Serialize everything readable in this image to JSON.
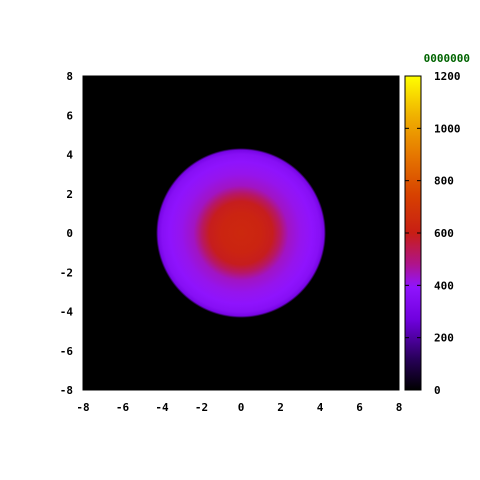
{
  "chart_data": {
    "type": "heatmap",
    "title": "",
    "frame_label": "0000000",
    "frame_label_color": "#006400",
    "xlabel": "",
    "ylabel": "",
    "xlim": [
      -8,
      8
    ],
    "ylim": [
      -8,
      8
    ],
    "x_ticks": [
      "-8",
      "-6",
      "-4",
      "-2",
      "0",
      "2",
      "4",
      "6",
      "8"
    ],
    "y_ticks": [
      "8",
      "6",
      "4",
      "2",
      "0",
      "-2",
      "-4",
      "-6",
      "-8"
    ],
    "colorbar": {
      "range": [
        0,
        1200
      ],
      "ticks": [
        "1200",
        "1000",
        "800",
        "600",
        "400",
        "200",
        "0"
      ],
      "palette": "black-blue-purple-red-orange-yellow"
    },
    "field": {
      "shape": "radial",
      "center": [
        0,
        0
      ],
      "profile": [
        {
          "r": 0.0,
          "value": 640
        },
        {
          "r": 1.0,
          "value": 625
        },
        {
          "r": 1.6,
          "value": 590
        },
        {
          "r": 2.0,
          "value": 520
        },
        {
          "r": 2.4,
          "value": 440
        },
        {
          "r": 3.0,
          "value": 410
        },
        {
          "r": 3.6,
          "value": 390
        },
        {
          "r": 4.0,
          "value": 360
        },
        {
          "r": 4.2,
          "value": 300
        },
        {
          "r": 4.3,
          "value": 0
        },
        {
          "r": 12.0,
          "value": 0
        }
      ]
    }
  }
}
